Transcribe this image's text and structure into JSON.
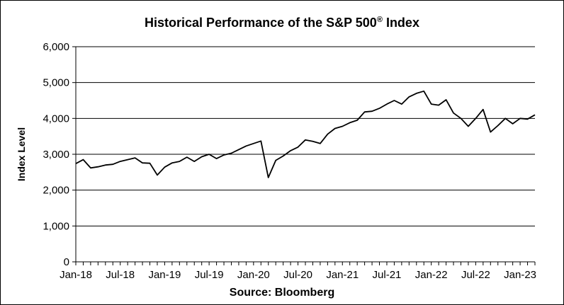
{
  "chart_data": {
    "type": "line",
    "title": "Historical Performance of the S&P 500",
    "title_mark": "®",
    "title_suffix": " Index",
    "xlabel": "Source: Bloomberg",
    "ylabel": "Index Level",
    "ylim": [
      0,
      6000
    ],
    "yticks": [
      0,
      1000,
      2000,
      3000,
      4000,
      5000,
      6000
    ],
    "ytick_labels": [
      "0",
      "1,000",
      "2,000",
      "3,000",
      "4,000",
      "5,000",
      "6,000"
    ],
    "xlim": [
      "2018-01",
      "2023-03"
    ],
    "xticks": [
      "Jan-18",
      "Jul-18",
      "Jan-19",
      "Jul-19",
      "Jan-20",
      "Jul-20",
      "Jan-21",
      "Jul-21",
      "Jan-22",
      "Jul-22",
      "Jan-23"
    ],
    "grid": "horizontal",
    "legend": "none",
    "line_color": "#000000",
    "series": [
      {
        "x": [
          "2018-01",
          "2018-02",
          "2018-03",
          "2018-04",
          "2018-05",
          "2018-06",
          "2018-07",
          "2018-08",
          "2018-09",
          "2018-10",
          "2018-11",
          "2018-12",
          "2019-01",
          "2019-02",
          "2019-03",
          "2019-04",
          "2019-05",
          "2019-06",
          "2019-07",
          "2019-08",
          "2019-09",
          "2019-10",
          "2019-11",
          "2019-12",
          "2020-01",
          "2020-02",
          "2020-03",
          "2020-04",
          "2020-05",
          "2020-06",
          "2020-07",
          "2020-08",
          "2020-09",
          "2020-10",
          "2020-11",
          "2020-12",
          "2021-01",
          "2021-02",
          "2021-03",
          "2021-04",
          "2021-05",
          "2021-06",
          "2021-07",
          "2021-08",
          "2021-09",
          "2021-10",
          "2021-11",
          "2021-12",
          "2022-01",
          "2022-02",
          "2022-03",
          "2022-04",
          "2022-05",
          "2022-06",
          "2022-07",
          "2022-08",
          "2022-09",
          "2022-10",
          "2022-11",
          "2022-12",
          "2023-01",
          "2023-02",
          "2023-03"
        ],
        "values": [
          2740,
          2850,
          2620,
          2650,
          2700,
          2720,
          2800,
          2850,
          2900,
          2760,
          2750,
          2420,
          2640,
          2760,
          2800,
          2920,
          2800,
          2930,
          3000,
          2880,
          2980,
          3030,
          3130,
          3230,
          3300,
          3370,
          2350,
          2830,
          2950,
          3100,
          3200,
          3400,
          3360,
          3300,
          3560,
          3720,
          3780,
          3880,
          3950,
          4180,
          4200,
          4280,
          4400,
          4500,
          4400,
          4600,
          4700,
          4760,
          4400,
          4370,
          4520,
          4150,
          4000,
          3780,
          4000,
          4250,
          3620,
          3800,
          4000,
          3850,
          4000,
          3980,
          4100
        ]
      }
    ]
  }
}
